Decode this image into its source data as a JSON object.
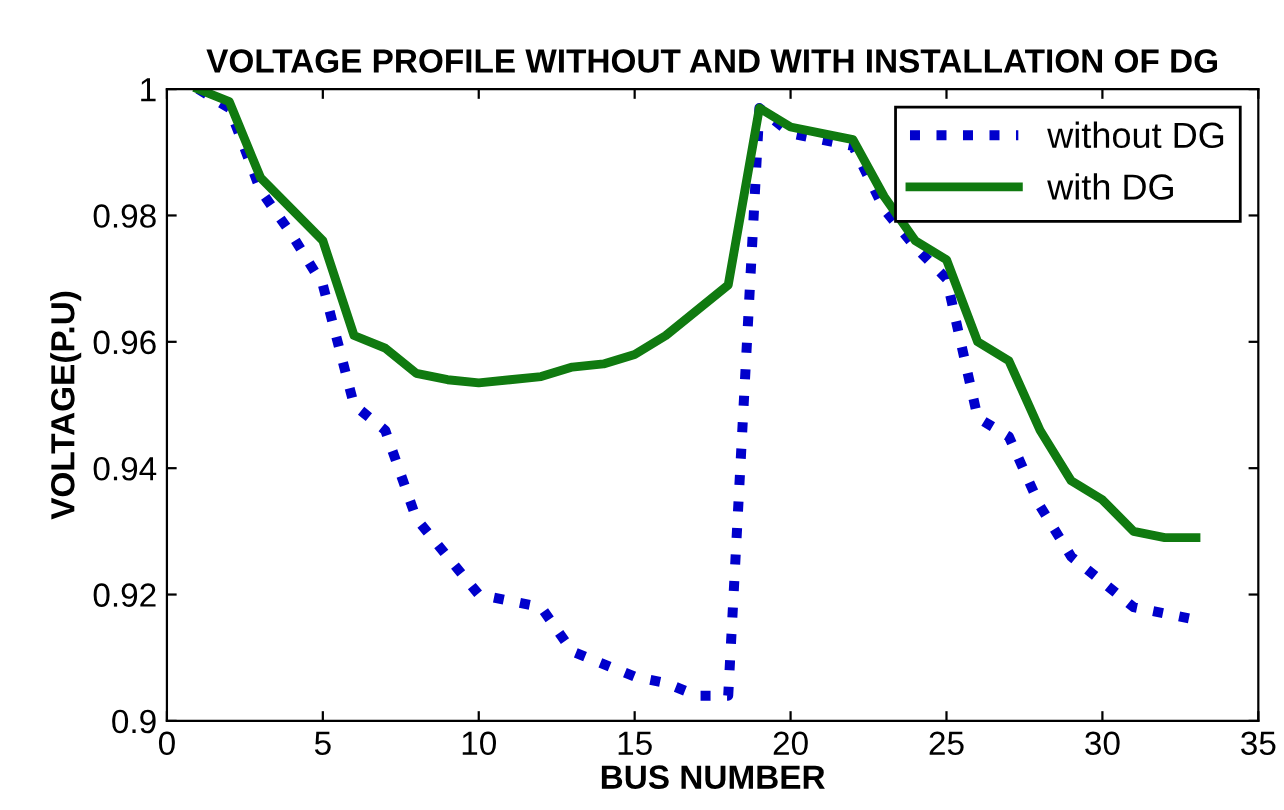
{
  "chart_data": {
    "type": "line",
    "title": "VOLTAGE PROFILE WITHOUT AND WITH INSTALLATION OF DG",
    "xlabel": "BUS NUMBER",
    "ylabel": "VOLTAGE(P.U)",
    "x": [
      1,
      2,
      3,
      4,
      5,
      6,
      7,
      8,
      9,
      10,
      11,
      12,
      13,
      14,
      15,
      16,
      17,
      18,
      19,
      20,
      21,
      22,
      23,
      24,
      25,
      26,
      27,
      28,
      29,
      30,
      31,
      32,
      33
    ],
    "series": [
      {
        "name": "without DG",
        "color": "#0000cc",
        "line_style": "dotted",
        "values": [
          1.0,
          0.997,
          0.984,
          0.977,
          0.969,
          0.95,
          0.946,
          0.932,
          0.926,
          0.92,
          0.919,
          0.918,
          0.911,
          0.909,
          0.907,
          0.906,
          0.904,
          0.904,
          0.997,
          0.993,
          0.992,
          0.991,
          0.981,
          0.975,
          0.97,
          0.948,
          0.945,
          0.934,
          0.926,
          0.922,
          0.918,
          0.917,
          0.916
        ]
      },
      {
        "name": "with DG",
        "color": "#107a10",
        "line_style": "solid",
        "values": [
          1.0,
          0.998,
          0.986,
          0.981,
          0.976,
          0.961,
          0.959,
          0.955,
          0.954,
          0.9535,
          0.954,
          0.9545,
          0.956,
          0.9565,
          0.958,
          0.961,
          0.965,
          0.969,
          0.997,
          0.994,
          0.993,
          0.992,
          0.983,
          0.976,
          0.973,
          0.96,
          0.957,
          0.946,
          0.938,
          0.935,
          0.93,
          0.929,
          0.929
        ]
      }
    ],
    "xlim": [
      0,
      35
    ],
    "xticks": [
      0,
      5,
      10,
      15,
      20,
      25,
      30,
      35
    ],
    "ylim": [
      0.9,
      1.0
    ],
    "yticks": [
      0.9,
      0.92,
      0.94,
      0.96,
      0.98,
      {
        "value": 1.0,
        "label": "1"
      }
    ],
    "grid": false,
    "legend": "top right"
  }
}
